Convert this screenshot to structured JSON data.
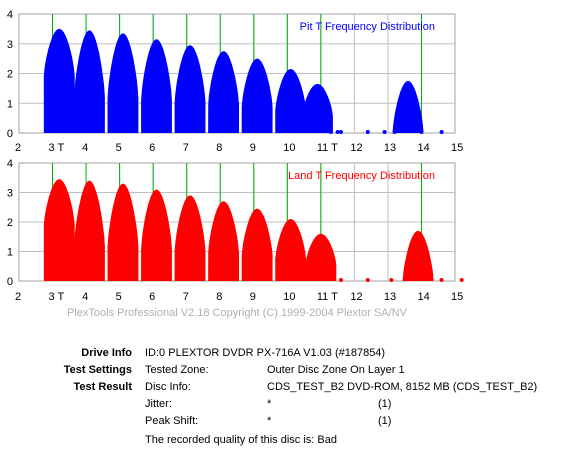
{
  "charts": [
    {
      "type": "bar",
      "title": "Pit T Frequency Distribution",
      "color": "#0000ff",
      "xlim": [
        2,
        15
      ],
      "ylim": [
        0,
        4
      ],
      "x_tick_labels": [
        "2",
        "3 T",
        "4",
        "5",
        "6",
        "7",
        "8",
        "9",
        "10",
        "11 T",
        "12",
        "13",
        "14",
        "15"
      ],
      "y_tick_labels": [
        "0",
        "1",
        "2",
        "3",
        "4"
      ],
      "green_lines": [
        3,
        4,
        5,
        6,
        7,
        8,
        9,
        10,
        11,
        14
      ],
      "peaks": [
        {
          "x": 3.2,
          "y": 3.5
        },
        {
          "x": 4.1,
          "y": 3.45
        },
        {
          "x": 5.1,
          "y": 3.35
        },
        {
          "x": 6.1,
          "y": 3.15
        },
        {
          "x": 7.1,
          "y": 2.95
        },
        {
          "x": 8.1,
          "y": 2.75
        },
        {
          "x": 9.1,
          "y": 2.5
        },
        {
          "x": 10.1,
          "y": 2.15
        },
        {
          "x": 10.9,
          "y": 1.65
        },
        {
          "x": 13.6,
          "y": 1.75
        }
      ],
      "dots": [
        11.3,
        11.5,
        11.6,
        12.4,
        12.9,
        13.2,
        14.0,
        14.6
      ]
    },
    {
      "type": "bar",
      "title": "Land T Frequency Distribution",
      "color": "#ff0000",
      "xlim": [
        2,
        15
      ],
      "ylim": [
        0,
        4
      ],
      "x_tick_labels": [
        "2",
        "3 T",
        "4",
        "5",
        "6",
        "7",
        "8",
        "9",
        "10",
        "11 T",
        "12",
        "13",
        "14",
        "15"
      ],
      "y_tick_labels": [
        "0",
        "1",
        "2",
        "3",
        "4"
      ],
      "green_lines": [
        3,
        4,
        5,
        6,
        7,
        8,
        9,
        10,
        11,
        14
      ],
      "peaks": [
        {
          "x": 3.2,
          "y": 3.45
        },
        {
          "x": 4.1,
          "y": 3.4
        },
        {
          "x": 5.1,
          "y": 3.3
        },
        {
          "x": 6.1,
          "y": 3.1
        },
        {
          "x": 7.1,
          "y": 2.9
        },
        {
          "x": 8.1,
          "y": 2.7
        },
        {
          "x": 9.1,
          "y": 2.45
        },
        {
          "x": 10.1,
          "y": 2.1
        },
        {
          "x": 11.0,
          "y": 1.6
        },
        {
          "x": 13.9,
          "y": 1.7
        }
      ],
      "dots": [
        11.6,
        12.4,
        13.1,
        14.6,
        15.2
      ]
    }
  ],
  "footer_note": "PlexTools Professional V2.18 Copyright (C) 1999-2004 Plextor SA/NV",
  "info": {
    "drive_label": "Drive Info",
    "drive_value": "ID:0 PLEXTOR DVDR PX-716A V1.03 (#187854)",
    "settings_label": "Test Settings",
    "settings_key": "Tested Zone:",
    "settings_value": "Outer Disc Zone On Layer 1",
    "result_label": "Test Result",
    "disc_key": "Disc Info:",
    "disc_value": "CDS_TEST_B2 DVD-ROM, 8152 MB (CDS_TEST_B2)",
    "jitter_key": "Jitter:",
    "jitter_value": "*",
    "jitter_note": "(1)",
    "peak_key": "Peak Shift:",
    "peak_value": "*",
    "peak_note": "(1)",
    "quality_text": "The recorded quality of this disc is: Bad"
  }
}
